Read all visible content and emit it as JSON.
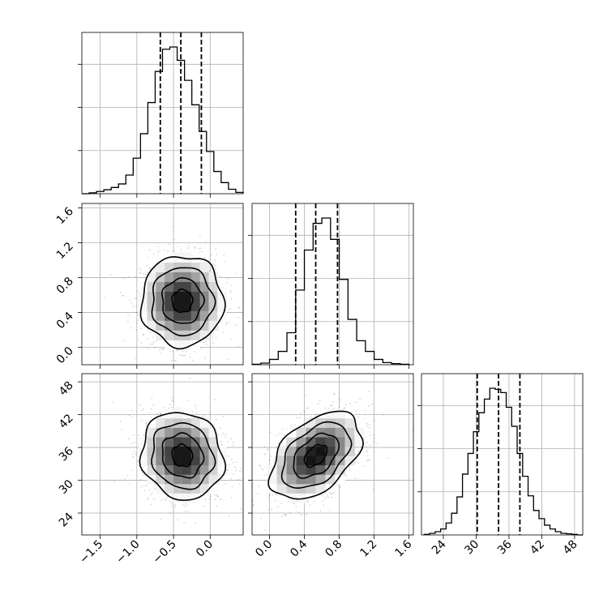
{
  "chart_data": {
    "type": "corner",
    "grid": true,
    "parameters": [
      {
        "range": [
          -1.75,
          0.45
        ],
        "ticks": [
          -1.5,
          -1.0,
          -0.5,
          0.0
        ],
        "tick_labels": [
          "−1.5",
          "−1.0",
          "−0.5",
          "0.0"
        ],
        "quantiles": [
          -0.68,
          -0.4,
          -0.12
        ],
        "histogram": {
          "bin_edges": [
            -1.75,
            -1.65,
            -1.55,
            -1.45,
            -1.35,
            -1.25,
            -1.15,
            -1.05,
            -0.95,
            -0.85,
            -0.75,
            -0.65,
            -0.55,
            -0.45,
            -0.35,
            -0.25,
            -0.15,
            -0.05,
            0.05,
            0.15,
            0.25,
            0.35,
            0.45
          ],
          "counts": [
            0,
            2,
            5,
            9,
            14,
            22,
            42,
            80,
            135,
            205,
            275,
            325,
            330,
            300,
            255,
            200,
            140,
            95,
            50,
            25,
            10,
            3
          ]
        }
      },
      {
        "range": [
          -0.2,
          1.65
        ],
        "ticks": [
          0.0,
          0.4,
          0.8,
          1.2,
          1.6
        ],
        "tick_labels": [
          "0.0",
          "0.4",
          "0.8",
          "1.2",
          "1.6"
        ],
        "quantiles": [
          0.3,
          0.53,
          0.78
        ],
        "histogram": {
          "bin_edges": [
            -0.2,
            -0.1,
            0.0,
            0.1,
            0.2,
            0.3,
            0.4,
            0.5,
            0.6,
            0.7,
            0.8,
            0.9,
            1.0,
            1.1,
            1.2,
            1.3,
            1.4,
            1.5,
            1.6
          ],
          "counts": [
            1,
            3,
            10,
            25,
            60,
            140,
            215,
            265,
            275,
            235,
            160,
            85,
            45,
            25,
            10,
            4,
            2,
            1
          ]
        }
      },
      {
        "range": [
          20.0,
          49.5
        ],
        "ticks": [
          24,
          30,
          36,
          42,
          48
        ],
        "tick_labels": [
          "24",
          "30",
          "36",
          "42",
          "48"
        ],
        "quantiles": [
          30.2,
          34.1,
          38.0
        ],
        "histogram": {
          "bin_edges": [
            20.5,
            21.5,
            22.5,
            23.5,
            24.5,
            25.5,
            26.5,
            27.5,
            28.5,
            29.5,
            30.5,
            31.5,
            32.5,
            33.5,
            34.5,
            35.5,
            36.5,
            37.5,
            38.5,
            39.5,
            40.5,
            41.5,
            42.5,
            43.5,
            44.5,
            45.5,
            46.5,
            47.5,
            48.5,
            49.5
          ],
          "counts": [
            1,
            3,
            6,
            11,
            22,
            40,
            70,
            112,
            150,
            190,
            225,
            250,
            270,
            268,
            262,
            235,
            200,
            150,
            108,
            72,
            45,
            30,
            18,
            11,
            6,
            3,
            2,
            1,
            0
          ]
        }
      }
    ],
    "pairs": [
      {
        "x_param": 0,
        "y_param": 1,
        "center": [
          -0.38,
          0.53
        ],
        "sigma": [
          0.28,
          0.26
        ],
        "correlation": 0.0,
        "n_points": 1300
      },
      {
        "x_param": 0,
        "y_param": 2,
        "center": [
          -0.38,
          34.5
        ],
        "sigma": [
          0.28,
          4.0
        ],
        "correlation": -0.1,
        "n_points": 1300
      },
      {
        "x_param": 1,
        "y_param": 2,
        "center": [
          0.53,
          34.5
        ],
        "sigma": [
          0.26,
          4.0
        ],
        "correlation": 0.45,
        "n_points": 1300
      }
    ],
    "contour_levels_sigma": [
      0.5,
      1.0,
      1.5,
      2.0
    ]
  }
}
